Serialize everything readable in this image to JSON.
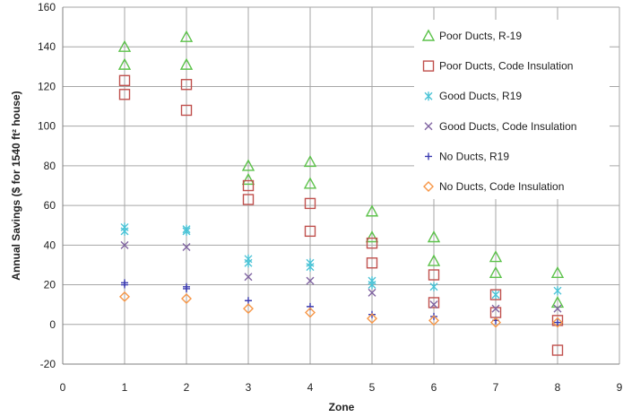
{
  "chart_data": {
    "type": "scatter",
    "xlabel": "Zone",
    "ylabel": "Annual Savings ($ for 1540 ft² house)",
    "xlim": [
      0,
      9
    ],
    "ylim": [
      -20,
      160
    ],
    "x_ticks": [
      "0",
      "1",
      "2",
      "3",
      "4",
      "5",
      "6",
      "7",
      "8",
      "9"
    ],
    "y_ticks": [
      "-20",
      "0",
      "20",
      "40",
      "60",
      "80",
      "100",
      "120",
      "140",
      "160"
    ],
    "grid": "vertical and horizontal at ticks",
    "legend_position": "top-right",
    "series": [
      {
        "name": "Poor Ducts,  R-19",
        "marker": "triangle-icon",
        "color": "#5cc24a",
        "points": [
          [
            1,
            140
          ],
          [
            1,
            131
          ],
          [
            2,
            145
          ],
          [
            2,
            131
          ],
          [
            3,
            80
          ],
          [
            3,
            73
          ],
          [
            4,
            82
          ],
          [
            4,
            71
          ],
          [
            5,
            57
          ],
          [
            5,
            44
          ],
          [
            6,
            44
          ],
          [
            6,
            32
          ],
          [
            7,
            34
          ],
          [
            7,
            26
          ],
          [
            8,
            26
          ],
          [
            8,
            11
          ]
        ]
      },
      {
        "name": "Poor Ducts, Code Insulation",
        "marker": "square-icon",
        "color": "#c0504d",
        "points": [
          [
            1,
            123
          ],
          [
            1,
            116
          ],
          [
            2,
            121
          ],
          [
            2,
            108
          ],
          [
            3,
            70
          ],
          [
            3,
            63
          ],
          [
            4,
            61
          ],
          [
            4,
            47
          ],
          [
            5,
            41
          ],
          [
            5,
            31
          ],
          [
            6,
            25
          ],
          [
            6,
            11
          ],
          [
            7,
            15
          ],
          [
            7,
            6
          ],
          [
            8,
            2
          ],
          [
            8,
            -13
          ]
        ]
      },
      {
        "name": "Good Ducts, R19",
        "marker": "asterisk-icon",
        "color": "#4bc3d6",
        "points": [
          [
            1,
            49
          ],
          [
            1,
            47
          ],
          [
            2,
            48
          ],
          [
            2,
            47
          ],
          [
            3,
            33
          ],
          [
            3,
            31
          ],
          [
            4,
            31
          ],
          [
            4,
            29
          ],
          [
            5,
            22
          ],
          [
            5,
            20
          ],
          [
            6,
            19
          ],
          [
            7,
            15
          ],
          [
            8,
            17
          ]
        ]
      },
      {
        "name": "Good Ducts, Code Insulation",
        "marker": "x-icon",
        "color": "#8064a2",
        "points": [
          [
            1,
            40
          ],
          [
            2,
            39
          ],
          [
            3,
            24
          ],
          [
            4,
            22
          ],
          [
            5,
            16
          ],
          [
            6,
            10
          ],
          [
            7,
            8
          ],
          [
            8,
            8
          ]
        ]
      },
      {
        "name": "No Ducts, R19",
        "marker": "plus-icon",
        "color": "#3b3bb0",
        "points": [
          [
            1,
            21
          ],
          [
            1,
            20
          ],
          [
            2,
            19
          ],
          [
            2,
            18
          ],
          [
            3,
            12
          ],
          [
            4,
            9
          ],
          [
            5,
            5
          ],
          [
            6,
            4
          ],
          [
            7,
            2
          ],
          [
            8,
            1
          ]
        ]
      },
      {
        "name": "No Ducts, Code Insulation",
        "marker": "diamond-icon",
        "color": "#f79646",
        "points": [
          [
            1,
            14
          ],
          [
            2,
            13
          ],
          [
            3,
            8
          ],
          [
            4,
            6
          ],
          [
            5,
            3
          ],
          [
            6,
            2
          ],
          [
            7,
            1
          ],
          [
            8,
            1
          ]
        ]
      }
    ]
  }
}
